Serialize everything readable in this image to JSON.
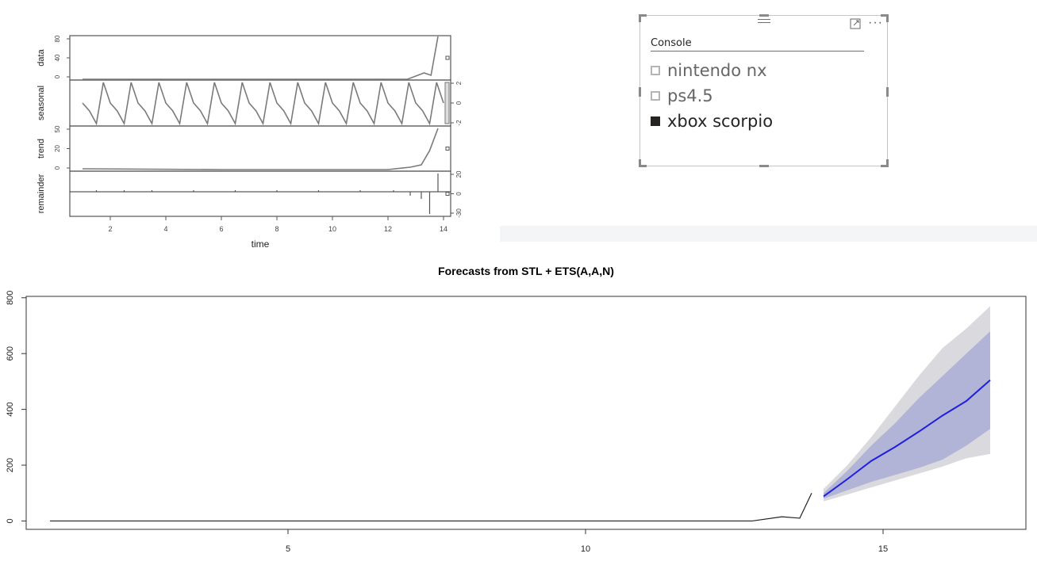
{
  "stl_plot": {
    "panel_labels": [
      "data",
      "seasonal",
      "trend",
      "remainder"
    ],
    "x_ticks": [
      "2",
      "4",
      "6",
      "8",
      "10",
      "12",
      "14"
    ],
    "x_tick_values": [
      2,
      4,
      6,
      8,
      10,
      12,
      14
    ],
    "xlabel": "time",
    "y_ticks": {
      "data": [
        "0",
        "40",
        "80"
      ],
      "seasonal": [
        "-2",
        "0",
        "2"
      ],
      "trend": [
        "0",
        "20",
        "50"
      ],
      "remainder": [
        "-30",
        "0",
        "20"
      ]
    }
  },
  "slicer": {
    "header": "Console",
    "items": [
      {
        "label": "nintendo nx",
        "checked": false
      },
      {
        "label": "ps4.5",
        "checked": false
      },
      {
        "label": "xbox scorpio",
        "checked": true
      }
    ],
    "more_label": "···"
  },
  "chart_data": {
    "type": "line",
    "title": "Forecasts from STL +  ETS(A,A,N)",
    "xlabel": "",
    "ylabel": "",
    "x_ticks": [
      5,
      10,
      15
    ],
    "y_ticks": [
      0,
      200,
      400,
      600,
      800
    ],
    "xlim": [
      0.6,
      17.4
    ],
    "ylim": [
      -30,
      805
    ],
    "history": {
      "x": [
        1.0,
        2.0,
        4.0,
        6.0,
        8.0,
        10.0,
        12.0,
        12.8,
        13.3,
        13.6,
        13.8
      ],
      "y": [
        0,
        0,
        0,
        0,
        0,
        0,
        0,
        0,
        15,
        10,
        100
      ]
    },
    "forecast": {
      "x": [
        14.0,
        14.4,
        14.8,
        15.2,
        15.6,
        16.0,
        16.4,
        16.8
      ],
      "mean": [
        88,
        150,
        215,
        265,
        320,
        378,
        430,
        505
      ],
      "lo80": [
        80,
        110,
        140,
        165,
        190,
        220,
        270,
        330
      ],
      "hi80": [
        100,
        180,
        270,
        350,
        440,
        520,
        600,
        680
      ],
      "lo95": [
        70,
        95,
        120,
        145,
        170,
        195,
        225,
        240
      ],
      "hi95": [
        115,
        200,
        300,
        410,
        520,
        620,
        690,
        770
      ]
    },
    "colors": {
      "mean": "#1f1fe0",
      "band80": "#b1b4d6",
      "band95": "#dadade",
      "history": "#222222"
    }
  }
}
